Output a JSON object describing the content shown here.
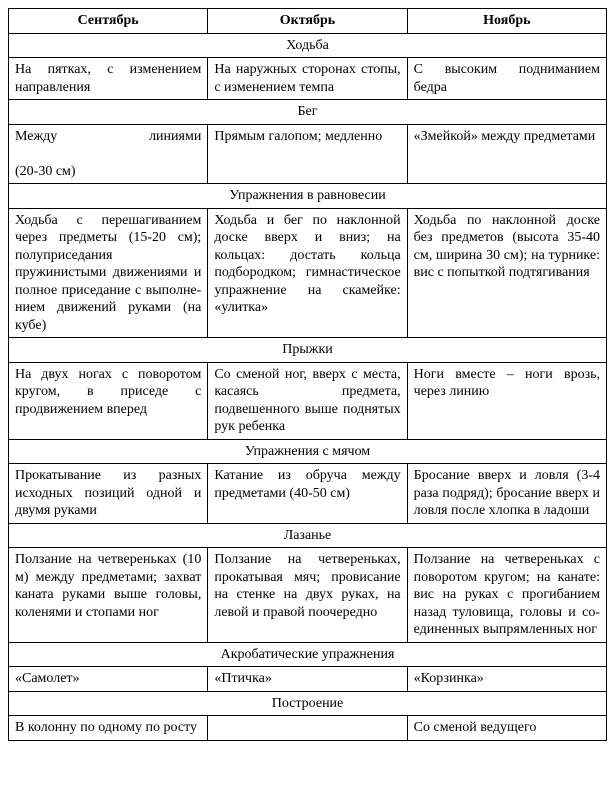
{
  "headers": [
    "Сентябрь",
    "Октябрь",
    "Ноябрь"
  ],
  "sections": [
    {
      "title": "Ходьба",
      "cells": [
        "На пятках, с измене­нием направления",
        "На наружных сторонах стопы, с изменением темпа",
        "С высоким поднимани­ем бедра"
      ]
    },
    {
      "title": "Бег",
      "cells": [
        "Между линиями (20-30 см)",
        "Прямым галопом; мед­ленно",
        "«Змейкой» между пред­метами"
      ]
    },
    {
      "title": "Упражнения в равновесии",
      "cells": [
        "Ходьба с перешагива­нием через предметы (15-20 см); полуприсе­дания пружинистыми движениями и полное приседание с выполне­нием движений руками (на кубе)",
        "Ходьба и бег по наклон­ной доске вверх и вниз; на кольцах: достать кольца подбородком; гимнастическое упраж­нение на скамейке: «улитка»",
        "Ходьба по наклонной доске без предметов (высота 35-40 см, ши­рина 30 см); на турнике: вис с попыткой подтя­гивания"
      ]
    },
    {
      "title": "Прыжки",
      "cells": [
        "На двух ногах с поворо­том кругом, в приседе с продвижением вперед",
        "Со сменой ног, вверх с места, касаясь предме­та, подвешенного выше поднятых рук ребенка",
        "Ноги вместе – ноги врозь, через линию"
      ]
    },
    {
      "title": "Упражнения с мячом",
      "cells": [
        "Прокатывание из раз­ных исходных позиций одной и двумя руками",
        "Катание из обруча меж­ду предметами (40-50 см)",
        "Бросание вверх и ловля (3-4 раза подряд); бро­сание вверх и ловля после хлопка в ладоши"
      ]
    },
    {
      "title": "Лазанье",
      "cells": [
        "Ползание на четверень­ках (10 м) между пред­метами; захват каната руками выше головы, коленями и стопами ног",
        "Ползание на четверень­ках, прокатывая мяч; провисание на стенке на двух руках, на левой и правой поочередно",
        "Ползание на четверень­ках с поворотом кругом; на канате: вис на руках с прогибанием назад ту­ловища, головы и со­единенных выпрямлен­ных ног"
      ]
    },
    {
      "title": "Акробатические упражнения",
      "cells": [
        "«Самолет»",
        "«Птичка»",
        "«Корзинка»"
      ]
    },
    {
      "title": "Построение",
      "cells": [
        "В колонну по одному по росту",
        "",
        "Со сменой ведущего"
      ]
    }
  ],
  "special": {
    "between_lines_line1": "Между",
    "between_lines_line1b": "линиями",
    "between_lines_line2": "(20-30 см)"
  }
}
